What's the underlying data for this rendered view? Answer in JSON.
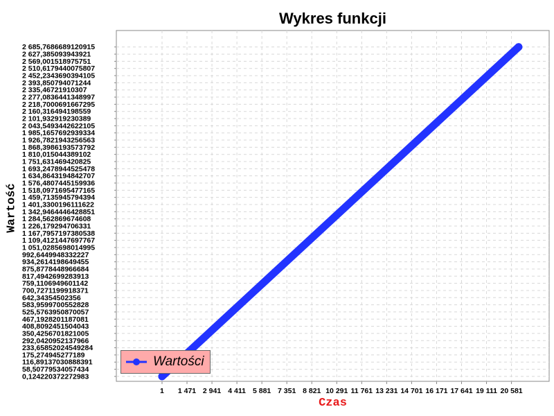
{
  "chart_data": {
    "type": "line",
    "title": "Wykres funkcji",
    "xlabel": "Czas",
    "ylabel": "Wartość",
    "x_tick_labels": [
      "1",
      "1 471",
      "2 941",
      "4 411",
      "5 881",
      "7 351",
      "8 821",
      "10 291",
      "11 761",
      "13 231",
      "14 701",
      "16 171",
      "17 641",
      "19 111",
      "20 581"
    ],
    "y_tick_labels": [
      "0,124220372272983",
      "58,50779534057434",
      "116,89137030888391",
      "175,274945277189",
      "233,65852024549284",
      "292,0420952137966",
      "350,4256701821005",
      "408,8092451504043",
      "467,1928201187081",
      "525,5763950870057",
      "583,9599700552828",
      "642,34354502356",
      "700,7271199918371",
      "759,1106949601142",
      "817,4942699283913",
      "875,8778448966684",
      "934,2614198649455",
      "992,6449948332227",
      "1 051,0285698014995",
      "1 109,4121447697767",
      "1 167,7957197380538",
      "1 226,179294706331",
      "1 284,562869674608",
      "1 342,9464446428851",
      "1 401,3300196111622",
      "1 459,7135945794394",
      "1 518,0971695477165",
      "1 576,4807445159936",
      "1 634,8643194842707",
      "1 693,2478944525478",
      "1 751,631469420825",
      "1 810,015044389102",
      "1 868,3986193573792",
      "1 926,7821943256563",
      "1 985,1657692939334",
      "2 043,5493442622105",
      "2 101,932919230389",
      "2 160,316494198559",
      "2 218,7000691667295",
      "2 277,0836441348997",
      "2 335,46721910307",
      "2 393,850794071244",
      "2 452,2343690394105",
      "2 510,6179440075807",
      "2 569,001518975751",
      "2 627,385093943921",
      "2 685,7686689120915"
    ],
    "x_ticks": [
      1,
      1471,
      2941,
      4411,
      5881,
      7351,
      8821,
      10291,
      11761,
      13231,
      14701,
      16171,
      17641,
      19111,
      20581
    ],
    "y_ticks": [
      0.124220372272983,
      58.50779534057434,
      116.89137030888391,
      175.274945277189,
      233.65852024549284,
      292.0420952137966,
      350.4256701821005,
      408.8092451504043,
      467.1928201187081,
      525.5763950870057,
      583.9599700552828,
      642.34354502356,
      700.7271199918371,
      759.1106949601142,
      817.4942699283913,
      875.8778448966684,
      934.2614198649455,
      992.6449948332227,
      1051.0285698014995,
      1109.4121447697767,
      1167.7957197380538,
      1226.179294706331,
      1284.562869674608,
      1342.9464446428851,
      1401.3300196111622,
      1459.7135945794394,
      1518.0971695477165,
      1576.4807445159936,
      1634.8643194842707,
      1693.2478944525478,
      1751.631469420825,
      1810.015044389102,
      1868.3986193573792,
      1926.7821943256563,
      1985.1657692939334,
      2043.5493442622105,
      2101.932919230389,
      2160.316494198559,
      2218.7000691667295,
      2277.0836441348997,
      2335.46721910307,
      2393.850794071244,
      2452.2343690394105,
      2510.6179440075807,
      2569.001518975751,
      2627.385093943921,
      2685.7686689120915
    ],
    "xlim": [
      -2690,
      22800
    ],
    "ylim": [
      -40,
      2820
    ],
    "series": [
      {
        "name": "Wartości",
        "x": [
          1,
          21000
        ],
        "y": [
          0.124220372272983,
          2685.7686689120915
        ],
        "color": "#2233ff"
      }
    ],
    "grid": true,
    "legend_position": "bottom-left",
    "legend_background": "#ffaaaa"
  }
}
